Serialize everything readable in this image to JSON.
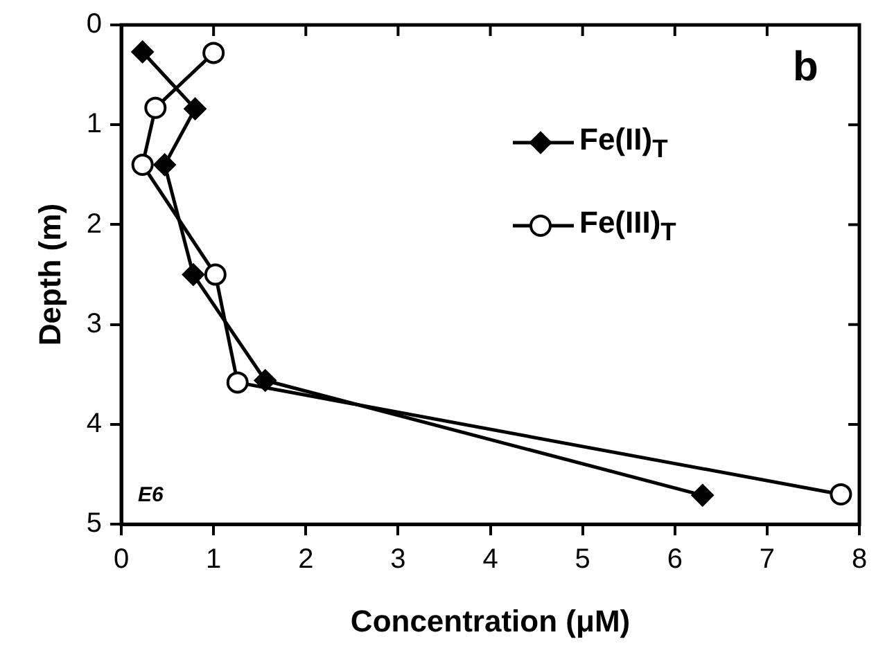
{
  "chart_data": {
    "type": "line",
    "xlabel": "Concentration (μM)",
    "ylabel": "Depth (m)",
    "xlim": [
      0,
      8
    ],
    "xticks": [
      0,
      1,
      2,
      3,
      4,
      5,
      6,
      7,
      8
    ],
    "ylim": [
      5,
      0
    ],
    "yticks": [
      0,
      1,
      2,
      3,
      4,
      5
    ],
    "series": [
      {
        "name": "Fe(II)$_{T}$",
        "color": "#000000",
        "marker": "diamond",
        "x": [
          0.23,
          0.8,
          0.47,
          0.78,
          1.56,
          6.3
        ],
        "values": [
          0.27,
          0.84,
          1.4,
          2.5,
          3.56,
          4.71
        ]
      },
      {
        "name": "Fe(III)$_{T}$",
        "color": "#000000",
        "marker": "circle",
        "x": [
          1.0,
          0.37,
          0.23,
          1.02,
          1.26,
          7.8
        ],
        "values": [
          0.28,
          0.83,
          1.4,
          2.5,
          3.58,
          4.7
        ]
      }
    ],
    "annotations": [
      "b",
      "E6"
    ],
    "legend": "top right",
    "grid": false,
    "line_style": "solid"
  }
}
